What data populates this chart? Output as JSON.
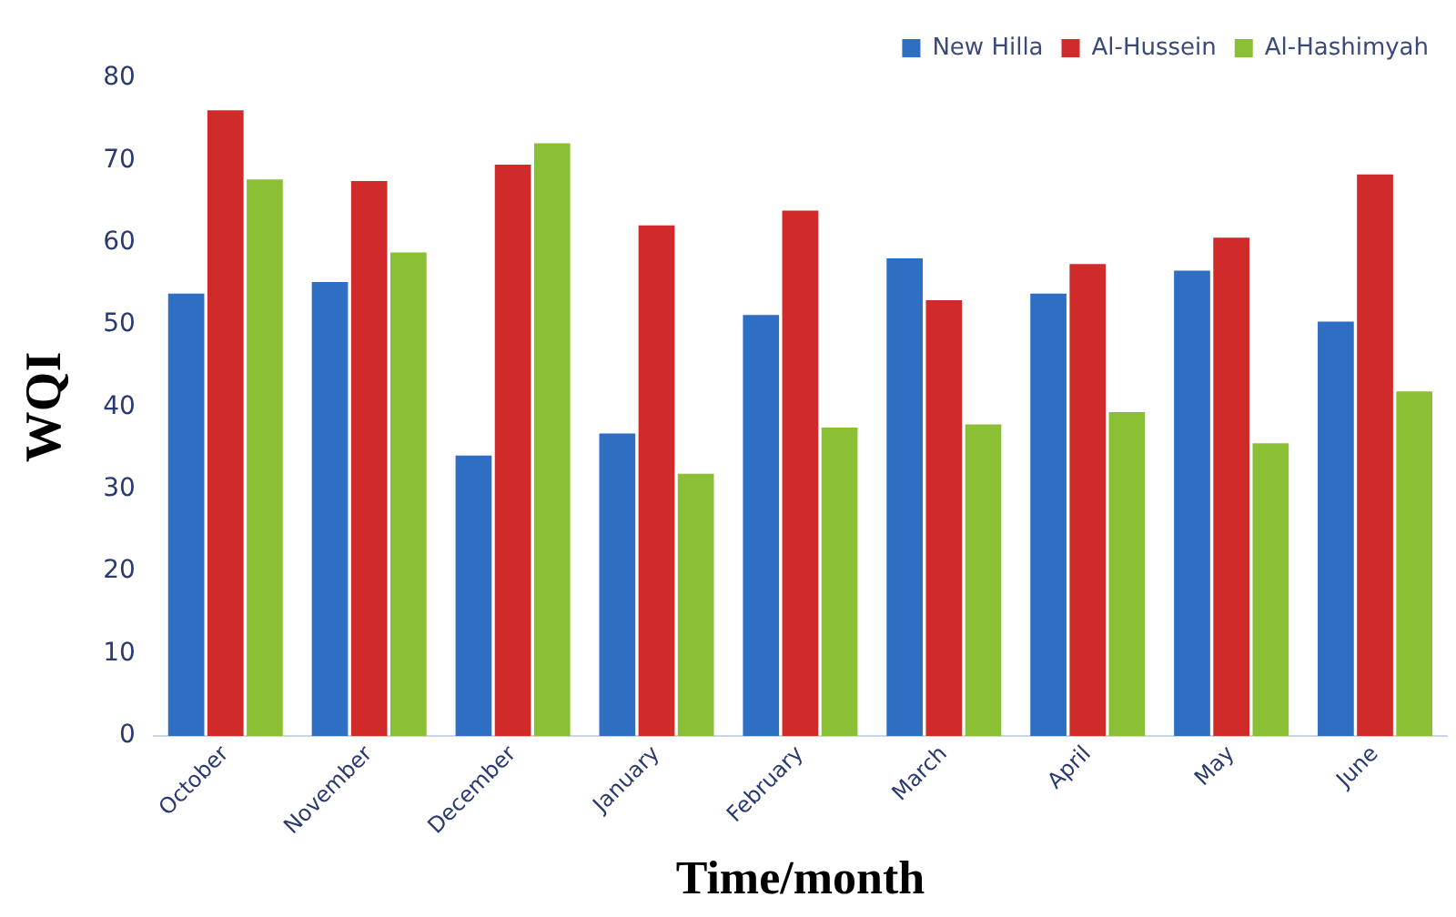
{
  "chart_data": {
    "type": "bar",
    "xlabel": "Time/month",
    "ylabel": "WQI",
    "categories": [
      "October",
      "November",
      "December",
      "January",
      "February",
      "March",
      "April",
      "May",
      "June"
    ],
    "series": [
      {
        "name": "New Hilla",
        "color": "#2e6fc4",
        "values": [
          53.8,
          55.2,
          34.1,
          36.8,
          51.2,
          58.1,
          53.8,
          56.6,
          50.4
        ]
      },
      {
        "name": "Al-Hussein",
        "color": "#d02a2a",
        "values": [
          76.1,
          67.5,
          69.5,
          62.1,
          63.9,
          53.0,
          57.4,
          60.6,
          68.3
        ]
      },
      {
        "name": "Al-Hashimyah",
        "color": "#8cc034",
        "values": [
          67.7,
          58.8,
          72.1,
          31.9,
          37.5,
          37.9,
          39.4,
          35.6,
          41.9
        ]
      }
    ],
    "ylim": [
      0,
      80
    ],
    "yticks": [
      0,
      10,
      20,
      30,
      40,
      50,
      60,
      70,
      80
    ],
    "grid": false,
    "legend": "top right"
  }
}
